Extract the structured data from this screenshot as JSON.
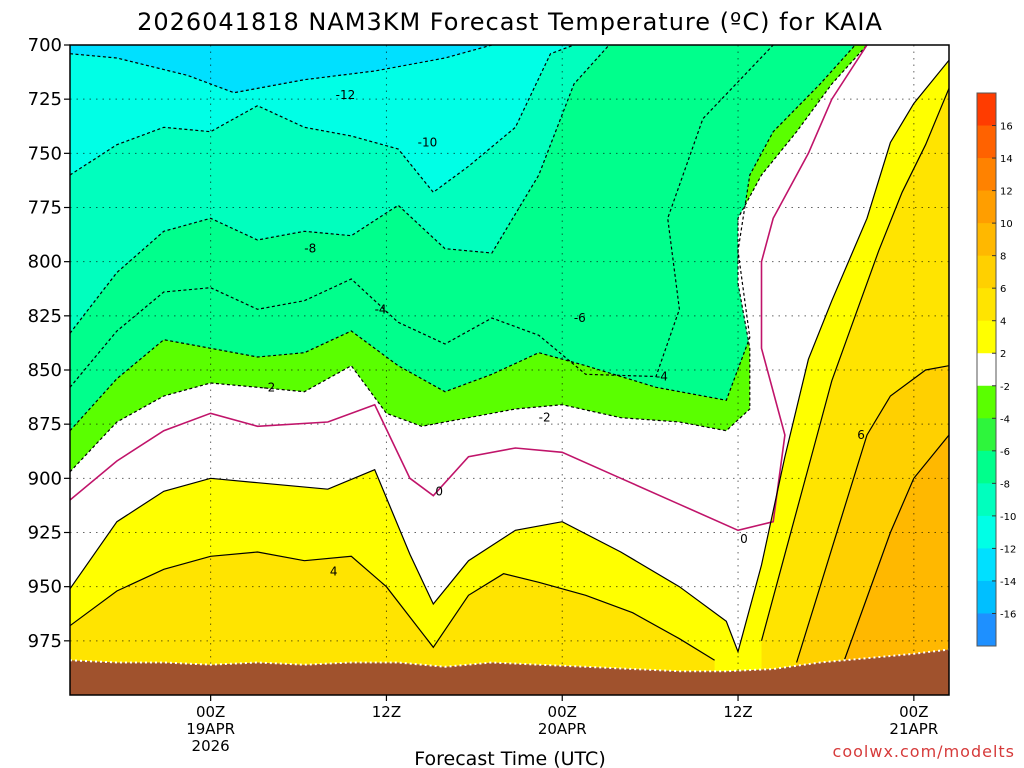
{
  "chart_data": {
    "type": "heatmap",
    "title": "2026041818 NAM3KM Forecast Temperature (ºC) for KAIA",
    "xlabel": "Forecast Time (UTC)",
    "ylabel": "",
    "credit": "coolwx.com/modelts",
    "y_axis": {
      "units": "hPa",
      "range": [
        700,
        1000
      ],
      "inverted": true,
      "ticks": [
        700,
        725,
        750,
        775,
        800,
        825,
        850,
        875,
        900,
        925,
        950,
        975
      ]
    },
    "x_axis": {
      "range_hours": [
        -12,
        63
      ],
      "ticks": [
        {
          "hour": 0,
          "l1": "00Z",
          "l2": "19APR",
          "l3": "2026"
        },
        {
          "hour": 15,
          "l1": "12Z",
          "l2": "",
          "l3": ""
        },
        {
          "hour": 30,
          "l1": "00Z",
          "l2": "20APR",
          "l3": ""
        },
        {
          "hour": 45,
          "l1": "12Z",
          "l2": "",
          "l3": ""
        },
        {
          "hour": 60,
          "l1": "00Z",
          "l2": "21APR",
          "l3": ""
        }
      ]
    },
    "grid": true,
    "colorbar": {
      "levels": [
        -18,
        -16,
        -14,
        -12,
        -10,
        -8,
        -6,
        -4,
        -2,
        2,
        4,
        6,
        8,
        10,
        12,
        14,
        16,
        18
      ],
      "tick_labels": [
        "-16",
        "-14",
        "-12",
        "-10",
        "-8",
        "-6",
        "-4",
        "-2",
        "2",
        "4",
        "6",
        "8",
        "10",
        "12",
        "14",
        "16"
      ],
      "colors": [
        "#1e90ff",
        "#00bfff",
        "#00e0ff",
        "#00ffe6",
        "#00ffbe",
        "#00ff8c",
        "#2ef53c",
        "#5aff00",
        "#ffffff",
        "#ffff00",
        "#ffe400",
        "#ffd000",
        "#ffb800",
        "#ff9e00",
        "#ff8200",
        "#ff6200",
        "#ff3c00"
      ]
    },
    "series": [
      {
        "level": -12,
        "points": [
          [
            -12,
            704
          ],
          [
            -8,
            706
          ],
          [
            -2,
            714
          ],
          [
            2,
            722
          ],
          [
            8,
            716
          ],
          [
            14,
            712
          ],
          [
            20,
            706
          ],
          [
            24,
            700
          ]
        ]
      },
      {
        "level": -10,
        "points": [
          [
            -12,
            760
          ],
          [
            -8,
            746
          ],
          [
            -4,
            738
          ],
          [
            0,
            740
          ],
          [
            4,
            728
          ],
          [
            8,
            738
          ],
          [
            12,
            742
          ],
          [
            16,
            748
          ],
          [
            19,
            768
          ],
          [
            22,
            756
          ],
          [
            26,
            738
          ],
          [
            29,
            704
          ],
          [
            31,
            700
          ]
        ]
      },
      {
        "level": -8,
        "points": [
          [
            -12,
            833
          ],
          [
            -8,
            805
          ],
          [
            -4,
            786
          ],
          [
            0,
            780
          ],
          [
            4,
            790
          ],
          [
            8,
            786
          ],
          [
            12,
            788
          ],
          [
            16,
            774
          ],
          [
            20,
            794
          ],
          [
            24,
            796
          ],
          [
            28,
            760
          ],
          [
            31,
            718
          ],
          [
            34,
            700
          ]
        ]
      },
      {
        "level": -6,
        "points": [
          [
            -12,
            858
          ],
          [
            -8,
            832
          ],
          [
            -4,
            814
          ],
          [
            0,
            812
          ],
          [
            4,
            822
          ],
          [
            8,
            818
          ],
          [
            12,
            808
          ],
          [
            16,
            828
          ],
          [
            20,
            838
          ],
          [
            24,
            826
          ],
          [
            28,
            834
          ],
          [
            32,
            852
          ],
          [
            38,
            853
          ],
          [
            40,
            822
          ],
          [
            39,
            780
          ],
          [
            42,
            734
          ],
          [
            48,
            700
          ]
        ]
      },
      {
        "level": -4,
        "points": [
          [
            -12,
            878
          ],
          [
            -8,
            854
          ],
          [
            -4,
            836
          ],
          [
            0,
            840
          ],
          [
            4,
            844
          ],
          [
            8,
            842
          ],
          [
            12,
            832
          ],
          [
            16,
            848
          ],
          [
            20,
            860
          ],
          [
            24,
            852
          ],
          [
            28,
            842
          ],
          [
            32,
            848
          ],
          [
            38,
            858
          ],
          [
            44,
            864
          ],
          [
            46,
            835
          ],
          [
            45,
            795
          ],
          [
            46,
            760
          ],
          [
            48,
            740
          ],
          [
            52,
            718
          ],
          [
            55,
            700
          ]
        ]
      },
      {
        "level": -2,
        "points": [
          [
            -12,
            897
          ],
          [
            -8,
            874
          ],
          [
            -4,
            862
          ],
          [
            0,
            856
          ],
          [
            4,
            858
          ],
          [
            8,
            860
          ],
          [
            12,
            848
          ],
          [
            15,
            870
          ],
          [
            18,
            876
          ],
          [
            22,
            872
          ],
          [
            26,
            868
          ],
          [
            30,
            866
          ],
          [
            35,
            872
          ],
          [
            40,
            874
          ],
          [
            44,
            878
          ],
          [
            46,
            868
          ],
          [
            46,
            840
          ],
          [
            45,
            810
          ],
          [
            45,
            780
          ],
          [
            47,
            760
          ],
          [
            50,
            740
          ],
          [
            53,
            718
          ],
          [
            56,
            700
          ]
        ]
      },
      {
        "level": 0,
        "points": [
          [
            -12,
            910
          ],
          [
            -8,
            892
          ],
          [
            -4,
            878
          ],
          [
            0,
            870
          ],
          [
            4,
            876
          ],
          [
            10,
            874
          ],
          [
            14,
            866
          ],
          [
            17,
            900
          ],
          [
            19,
            908
          ],
          [
            22,
            890
          ],
          [
            26,
            886
          ],
          [
            30,
            888
          ],
          [
            35,
            900
          ],
          [
            40,
            912
          ],
          [
            45,
            924
          ],
          [
            48,
            920
          ],
          [
            49,
            880
          ],
          [
            47,
            840
          ],
          [
            47,
            800
          ],
          [
            48,
            780
          ],
          [
            51,
            750
          ],
          [
            53,
            725
          ],
          [
            56,
            700
          ]
        ]
      },
      {
        "level": 2,
        "points": [
          [
            -12,
            951
          ],
          [
            -8,
            920
          ],
          [
            -4,
            906
          ],
          [
            0,
            900
          ],
          [
            4,
            902
          ],
          [
            10,
            905
          ],
          [
            14,
            896
          ],
          [
            17,
            935
          ],
          [
            19,
            958
          ],
          [
            22,
            938
          ],
          [
            26,
            924
          ],
          [
            30,
            920
          ],
          [
            35,
            934
          ],
          [
            40,
            950
          ],
          [
            44,
            966
          ],
          [
            45,
            980
          ],
          [
            47,
            940
          ],
          [
            49,
            890
          ],
          [
            51,
            845
          ],
          [
            53,
            818
          ],
          [
            56,
            780
          ],
          [
            58,
            745
          ],
          [
            60,
            727
          ],
          [
            63,
            707
          ]
        ]
      },
      {
        "level": 4,
        "points": [
          [
            -12,
            968
          ],
          [
            -8,
            952
          ],
          [
            -4,
            942
          ],
          [
            0,
            936
          ],
          [
            4,
            934
          ],
          [
            8,
            938
          ],
          [
            12,
            936
          ],
          [
            15,
            950
          ],
          [
            19,
            978
          ],
          [
            22,
            954
          ],
          [
            25,
            944
          ],
          [
            28,
            948
          ],
          [
            32,
            954
          ],
          [
            36,
            962
          ],
          [
            40,
            974
          ],
          [
            43,
            984
          ]
        ]
      },
      {
        "level": 4,
        "points": [
          [
            47,
            975
          ],
          [
            49,
            935
          ],
          [
            51,
            895
          ],
          [
            53,
            855
          ],
          [
            55,
            825
          ],
          [
            57,
            795
          ],
          [
            59,
            768
          ],
          [
            61,
            746
          ],
          [
            63,
            720
          ]
        ]
      },
      {
        "level": 6,
        "points": [
          [
            50,
            985
          ],
          [
            52,
            950
          ],
          [
            54,
            915
          ],
          [
            56,
            880
          ],
          [
            58,
            862
          ],
          [
            61,
            850
          ],
          [
            63,
            848
          ]
        ]
      },
      {
        "level": 8,
        "points": [
          [
            54,
            985
          ],
          [
            56,
            955
          ],
          [
            58,
            925
          ],
          [
            60,
            900
          ],
          [
            63,
            880
          ]
        ]
      }
    ],
    "contour_labels": [
      {
        "text": "-12",
        "hour": 11.5,
        "hpa": 723
      },
      {
        "text": "-10",
        "hour": 18.5,
        "hpa": 745
      },
      {
        "text": "-8",
        "hour": 8.5,
        "hpa": 794
      },
      {
        "text": "-6",
        "hour": 31.5,
        "hpa": 826
      },
      {
        "text": "-4",
        "hour": 14.5,
        "hpa": 822
      },
      {
        "text": "-4",
        "hour": 38.5,
        "hpa": 853
      },
      {
        "text": "-2",
        "hour": 5,
        "hpa": 858
      },
      {
        "text": "-2",
        "hour": 28.5,
        "hpa": 872
      },
      {
        "text": "0",
        "hour": 19.5,
        "hpa": 906
      },
      {
        "text": "0",
        "hour": 45.5,
        "hpa": 928
      },
      {
        "text": "4",
        "hour": 10.5,
        "hpa": 943
      },
      {
        "text": "6",
        "hour": 55.5,
        "hpa": 880
      }
    ],
    "terrain_hpa": [
      [
        -12,
        984
      ],
      [
        -8,
        985
      ],
      [
        -4,
        985
      ],
      [
        0,
        986
      ],
      [
        4,
        985
      ],
      [
        8,
        986
      ],
      [
        12,
        985
      ],
      [
        16,
        985
      ],
      [
        20,
        987
      ],
      [
        24,
        985
      ],
      [
        28,
        986
      ],
      [
        32,
        987
      ],
      [
        36,
        988
      ],
      [
        40,
        989
      ],
      [
        44,
        989
      ],
      [
        48,
        988
      ],
      [
        52,
        985
      ],
      [
        56,
        983
      ],
      [
        60,
        981
      ],
      [
        63,
        979
      ]
    ]
  }
}
